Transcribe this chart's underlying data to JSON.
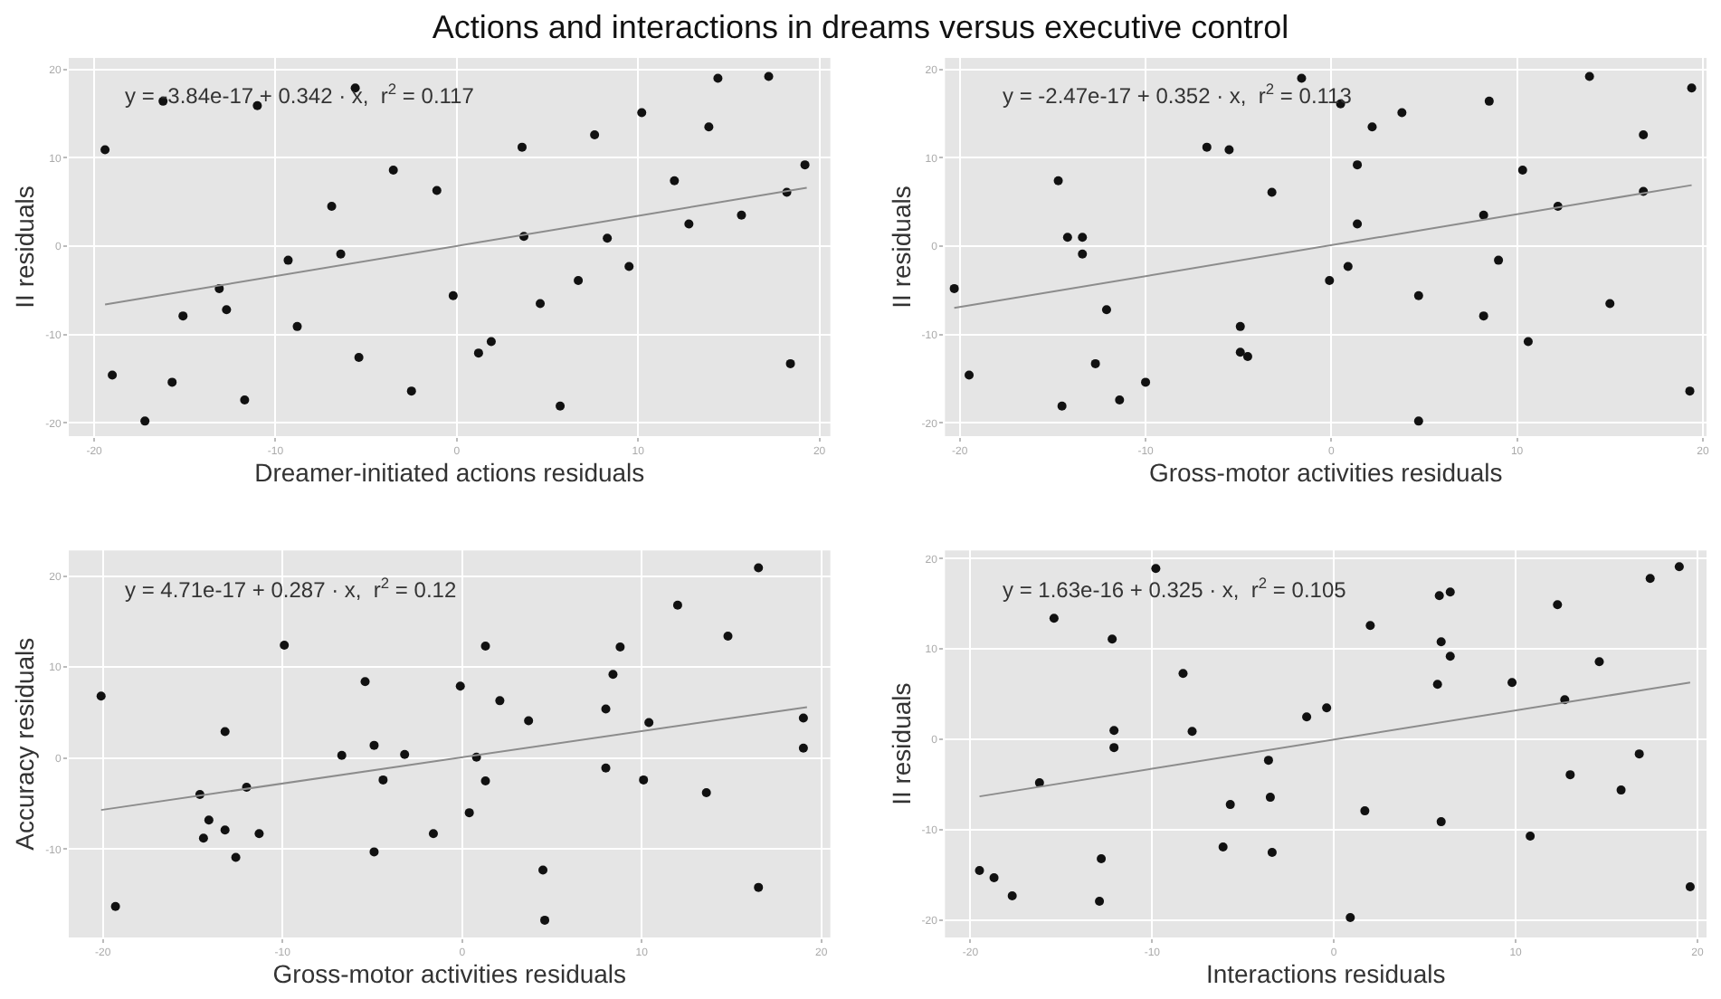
{
  "chart_data": [
    {
      "type": "scatter",
      "title": "Actions and interactions in dreams versus executive control",
      "xlabel": "Dreamer-initiated actions residuals",
      "ylabel": "II residuals",
      "annotations": [
        "y = -3.84e-17 + 0.342 · x,  r$^{2}$ = 0.117"
      ],
      "xlim": [
        -21.4,
        20.6
      ],
      "ylim": [
        -21.5,
        21.3
      ],
      "xticks": [
        -20,
        -10,
        0,
        10,
        20
      ],
      "yticks": [
        -20,
        -10,
        0,
        10,
        20
      ],
      "grid": true,
      "marker": "circle",
      "series": [
        {
          "color": "#111111",
          "x": [
            -19.4,
            -19.0,
            -17.2,
            -15.7,
            -15.1,
            -13.1,
            -12.7,
            -11.7,
            -9.3,
            -8.8,
            -6.9,
            -6.4,
            -5.4,
            -3.5,
            -2.5,
            -1.1,
            -0.2,
            1.2,
            1.9,
            3.6,
            3.7,
            4.6,
            5.7,
            6.7,
            7.6,
            8.3,
            9.5,
            10.2,
            12.0,
            12.8,
            13.9,
            14.4,
            15.7,
            17.2,
            18.2,
            18.4,
            19.2,
            -16.2,
            -11.0,
            -5.6
          ],
          "values": [
            10.9,
            -14.6,
            -19.8,
            -15.4,
            -7.9,
            -4.8,
            -7.2,
            -17.4,
            -1.6,
            -9.1,
            4.5,
            -0.9,
            -12.6,
            8.6,
            -16.4,
            6.3,
            -5.6,
            -12.1,
            -10.8,
            11.2,
            1.1,
            -6.5,
            -18.1,
            -3.9,
            12.6,
            0.9,
            -2.3,
            15.1,
            7.4,
            2.5,
            13.5,
            19.0,
            3.5,
            19.2,
            6.1,
            -13.3,
            9.2,
            16.4,
            15.9,
            17.9
          ]
        },
        {
          "type": "line",
          "marker": "none",
          "color": "#8c8c8c",
          "x": [
            -19.4,
            19.3
          ],
          "values": [
            -6.6,
            6.6
          ]
        }
      ]
    },
    {
      "type": "scatter",
      "xlabel": "Gross-motor activities residuals",
      "ylabel": "II residuals",
      "annotations": [
        "y = -2.47e-17 + 0.352 · x,  r$^{2}$ = 0.113"
      ],
      "xlim": [
        -20.8,
        20.2
      ],
      "ylim": [
        -21.5,
        21.3
      ],
      "xticks": [
        -20,
        -10,
        0,
        10,
        20
      ],
      "yticks": [
        -20,
        -10,
        0,
        10,
        20
      ],
      "grid": true,
      "marker": "circle",
      "series": [
        {
          "color": "#111111",
          "x": [
            -20.3,
            -19.5,
            -14.7,
            -14.5,
            -14.2,
            -13.4,
            -13.4,
            -12.7,
            -12.1,
            -11.4,
            -10.0,
            -6.7,
            -5.5,
            -4.9,
            -4.9,
            -4.5,
            -3.2,
            -1.6,
            -0.1,
            0.9,
            1.4,
            1.4,
            2.2,
            3.8,
            4.7,
            4.7,
            8.2,
            8.2,
            8.5,
            9.0,
            10.3,
            10.6,
            12.2,
            13.9,
            15.0,
            16.8,
            16.8,
            19.3,
            19.4,
            0.5
          ],
          "values": [
            -4.8,
            -14.6,
            7.4,
            -18.1,
            1.0,
            1.0,
            -0.9,
            -13.3,
            -7.2,
            -17.4,
            -15.4,
            11.2,
            10.9,
            -9.1,
            -12.0,
            -12.5,
            6.1,
            19.0,
            -3.9,
            -2.3,
            2.5,
            9.2,
            13.5,
            15.1,
            -5.6,
            -19.8,
            3.5,
            -7.9,
            16.4,
            -1.6,
            8.6,
            -10.8,
            4.5,
            19.2,
            -6.5,
            12.6,
            6.2,
            -16.4,
            17.9,
            16.1
          ]
        },
        {
          "type": "line",
          "marker": "none",
          "color": "#8c8c8c",
          "x": [
            -20.3,
            19.4
          ],
          "values": [
            -7.0,
            6.9
          ]
        }
      ]
    },
    {
      "type": "scatter",
      "xlabel": "Gross-motor activities residuals",
      "ylabel": "Accuracy residuals",
      "annotations": [
        "y = 4.71e-17 + 0.287 · x,  r$^{2}$ = 0.12"
      ],
      "xlim": [
        -21.9,
        20.5
      ],
      "ylim": [
        -19.7,
        22.8
      ],
      "xticks": [
        -20,
        -10,
        0,
        10,
        20
      ],
      "yticks": [
        -10,
        0,
        10,
        20
      ],
      "grid": true,
      "marker": "circle",
      "series": [
        {
          "color": "#111111",
          "x": [
            -20.1,
            -19.3,
            -14.6,
            -14.4,
            -14.1,
            -13.2,
            -13.2,
            -12.6,
            -12.0,
            -11.3,
            -9.9,
            -6.7,
            -5.4,
            -4.9,
            -4.9,
            -4.4,
            -3.2,
            -1.6,
            -0.1,
            0.4,
            0.8,
            1.3,
            1.3,
            2.1,
            3.7,
            4.5,
            4.6,
            8.0,
            8.0,
            8.4,
            8.8,
            10.1,
            10.4,
            12.0,
            13.6,
            14.8,
            16.5,
            16.5,
            19.0,
            19.0
          ],
          "values": [
            6.8,
            -16.3,
            -4.0,
            -8.8,
            -6.8,
            2.9,
            -7.9,
            -10.9,
            -3.2,
            -8.3,
            12.4,
            0.3,
            8.4,
            1.4,
            -10.3,
            -2.4,
            0.4,
            -8.3,
            7.9,
            -6.0,
            0.1,
            12.3,
            -2.5,
            6.3,
            4.1,
            -12.3,
            -17.8,
            5.4,
            -1.1,
            9.2,
            12.2,
            -2.4,
            3.9,
            16.8,
            -3.8,
            13.4,
            20.9,
            -14.2,
            4.4,
            1.1
          ]
        },
        {
          "type": "line",
          "marker": "none",
          "color": "#8c8c8c",
          "x": [
            -20.1,
            19.2
          ],
          "values": [
            -5.7,
            5.6
          ]
        }
      ]
    },
    {
      "type": "scatter",
      "xlabel": "Interactions residuals",
      "ylabel": "II residuals",
      "annotations": [
        "y = 1.63e-16 + 0.325 · x,  r$^{2}$ = 0.105"
      ],
      "xlim": [
        -21.4,
        20.5
      ],
      "ylim": [
        -21.9,
        20.9
      ],
      "xticks": [
        -20,
        -10,
        0,
        10,
        20
      ],
      "yticks": [
        -20,
        -10,
        0,
        10,
        20
      ],
      "grid": true,
      "marker": "circle",
      "series": [
        {
          "color": "#111111",
          "x": [
            -19.5,
            -18.7,
            -17.7,
            -16.2,
            -15.4,
            -12.9,
            -12.8,
            -12.2,
            -12.1,
            -12.1,
            -9.8,
            -8.3,
            -7.8,
            -6.1,
            -5.7,
            -3.6,
            -3.5,
            -3.4,
            -1.5,
            -0.4,
            0.9,
            1.7,
            2.0,
            5.7,
            5.8,
            5.9,
            5.9,
            6.4,
            6.4,
            9.8,
            10.8,
            12.3,
            12.7,
            13.0,
            14.6,
            15.8,
            16.8,
            17.4,
            19.0,
            19.6
          ],
          "values": [
            -14.5,
            -15.3,
            -17.3,
            -4.8,
            13.4,
            -17.9,
            -13.2,
            11.1,
            1.0,
            -0.9,
            18.9,
            7.3,
            0.9,
            -11.9,
            -7.2,
            -2.3,
            -6.4,
            -12.5,
            2.5,
            3.5,
            -19.7,
            -7.9,
            12.6,
            6.1,
            15.9,
            10.8,
            -9.1,
            16.3,
            9.2,
            6.3,
            -10.7,
            14.9,
            4.4,
            -3.9,
            8.6,
            -5.6,
            -1.6,
            17.8,
            19.1,
            -16.3
          ]
        },
        {
          "type": "line",
          "marker": "none",
          "color": "#8c8c8c",
          "x": [
            -19.5,
            19.6
          ],
          "values": [
            -6.3,
            6.3
          ]
        }
      ]
    }
  ]
}
